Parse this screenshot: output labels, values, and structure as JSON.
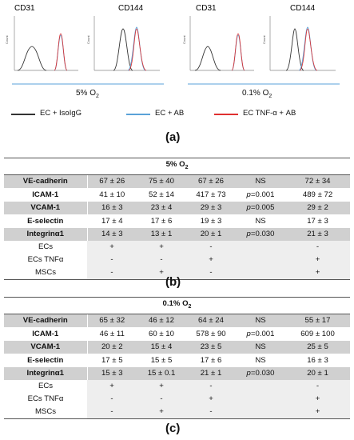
{
  "panel_a": {
    "label": "(a)",
    "groups": [
      {
        "condition": "5% O",
        "sub": "2",
        "plots": [
          {
            "title": "CD31"
          },
          {
            "title": "CD144"
          }
        ]
      },
      {
        "condition": "0.1% O",
        "sub": "2",
        "plots": [
          {
            "title": "CD31"
          },
          {
            "title": "CD144"
          }
        ]
      }
    ],
    "axis_label": "Count",
    "legend": [
      {
        "text": "EC + IsoIgG",
        "color": "#333333"
      },
      {
        "text": "EC + AB",
        "color": "#5aa2d8"
      },
      {
        "text": "EC TNF-α + AB",
        "color": "#e03030"
      }
    ]
  },
  "panel_b": {
    "label": "(b)",
    "title_main": "5% O",
    "title_sub": "2",
    "rows": [
      {
        "name": "VE-cadherin",
        "c1": "67 ± 26",
        "c2": "75 ± 40",
        "c3": "67 ± 26",
        "p": "NS",
        "pval": "",
        "c5": "72 ± 34"
      },
      {
        "name": "ICAM-1",
        "c1": "41 ± 10",
        "c2": "52 ± 14",
        "c3": "417 ± 73",
        "p": "p",
        "pval": "=0.001",
        "c5": "489 ± 72"
      },
      {
        "name": "VCAM-1",
        "c1": "16 ± 3",
        "c2": "23 ± 4",
        "c3": "29 ± 3",
        "p": "p",
        "pval": "=0.005",
        "c5": "29 ± 2"
      },
      {
        "name": "E-selectin",
        "c1": "17 ± 4",
        "c2": "17 ± 6",
        "c3": "19 ± 3",
        "p": "NS",
        "pval": "",
        "c5": "17 ± 3"
      },
      {
        "name": "Integrinα1",
        "c1": "14 ± 3",
        "c2": "13 ± 1",
        "c3": "20 ± 1",
        "p": "p",
        "pval": "=0.030",
        "c5": "21 ± 3"
      }
    ],
    "markers": [
      {
        "name": "ECs",
        "c1": "+",
        "c2": "+",
        "c3": "-",
        "c5": "-"
      },
      {
        "name": "ECs TNFα",
        "c1": "-",
        "c2": "-",
        "c3": "+",
        "c5": "+"
      },
      {
        "name": "MSCs",
        "c1": "-",
        "c2": "+",
        "c3": "-",
        "c5": "+"
      }
    ]
  },
  "panel_c": {
    "label": "(c)",
    "title_main": "0.1% O",
    "title_sub": "2",
    "rows": [
      {
        "name": "VE-cadherin",
        "c1": "65 ± 32",
        "c2": "46 ± 12",
        "c3": "64 ± 24",
        "p": "NS",
        "pval": "",
        "c5": "55 ± 17"
      },
      {
        "name": "ICAM-1",
        "c1": "46 ± 11",
        "c2": "60 ± 10",
        "c3": "578 ± 90",
        "p": "p",
        "pval": "=0.001",
        "c5": "609 ± 100"
      },
      {
        "name": "VCAM-1",
        "c1": "20 ± 2",
        "c2": "15 ± 4",
        "c3": "23 ± 5",
        "p": "NS",
        "pval": "",
        "c5": "25 ± 5"
      },
      {
        "name": "E-selectin",
        "c1": "17 ± 5",
        "c2": "15 ± 5",
        "c3": "17 ± 6",
        "p": "NS",
        "pval": "",
        "c5": "16 ± 3"
      },
      {
        "name": "Integrinα1",
        "c1": "15 ± 3",
        "c2": "15 ± 0.1",
        "c3": "21 ± 1",
        "p": "p",
        "pval": "=0.030",
        "c5": "20 ± 1"
      }
    ],
    "markers": [
      {
        "name": "ECs",
        "c1": "+",
        "c2": "+",
        "c3": "-",
        "c5": "-"
      },
      {
        "name": "ECs TNFα",
        "c1": "-",
        "c2": "-",
        "c3": "+",
        "c5": "+"
      },
      {
        "name": "MSCs",
        "c1": "-",
        "c2": "+",
        "c3": "-",
        "c5": "+"
      }
    ]
  }
}
